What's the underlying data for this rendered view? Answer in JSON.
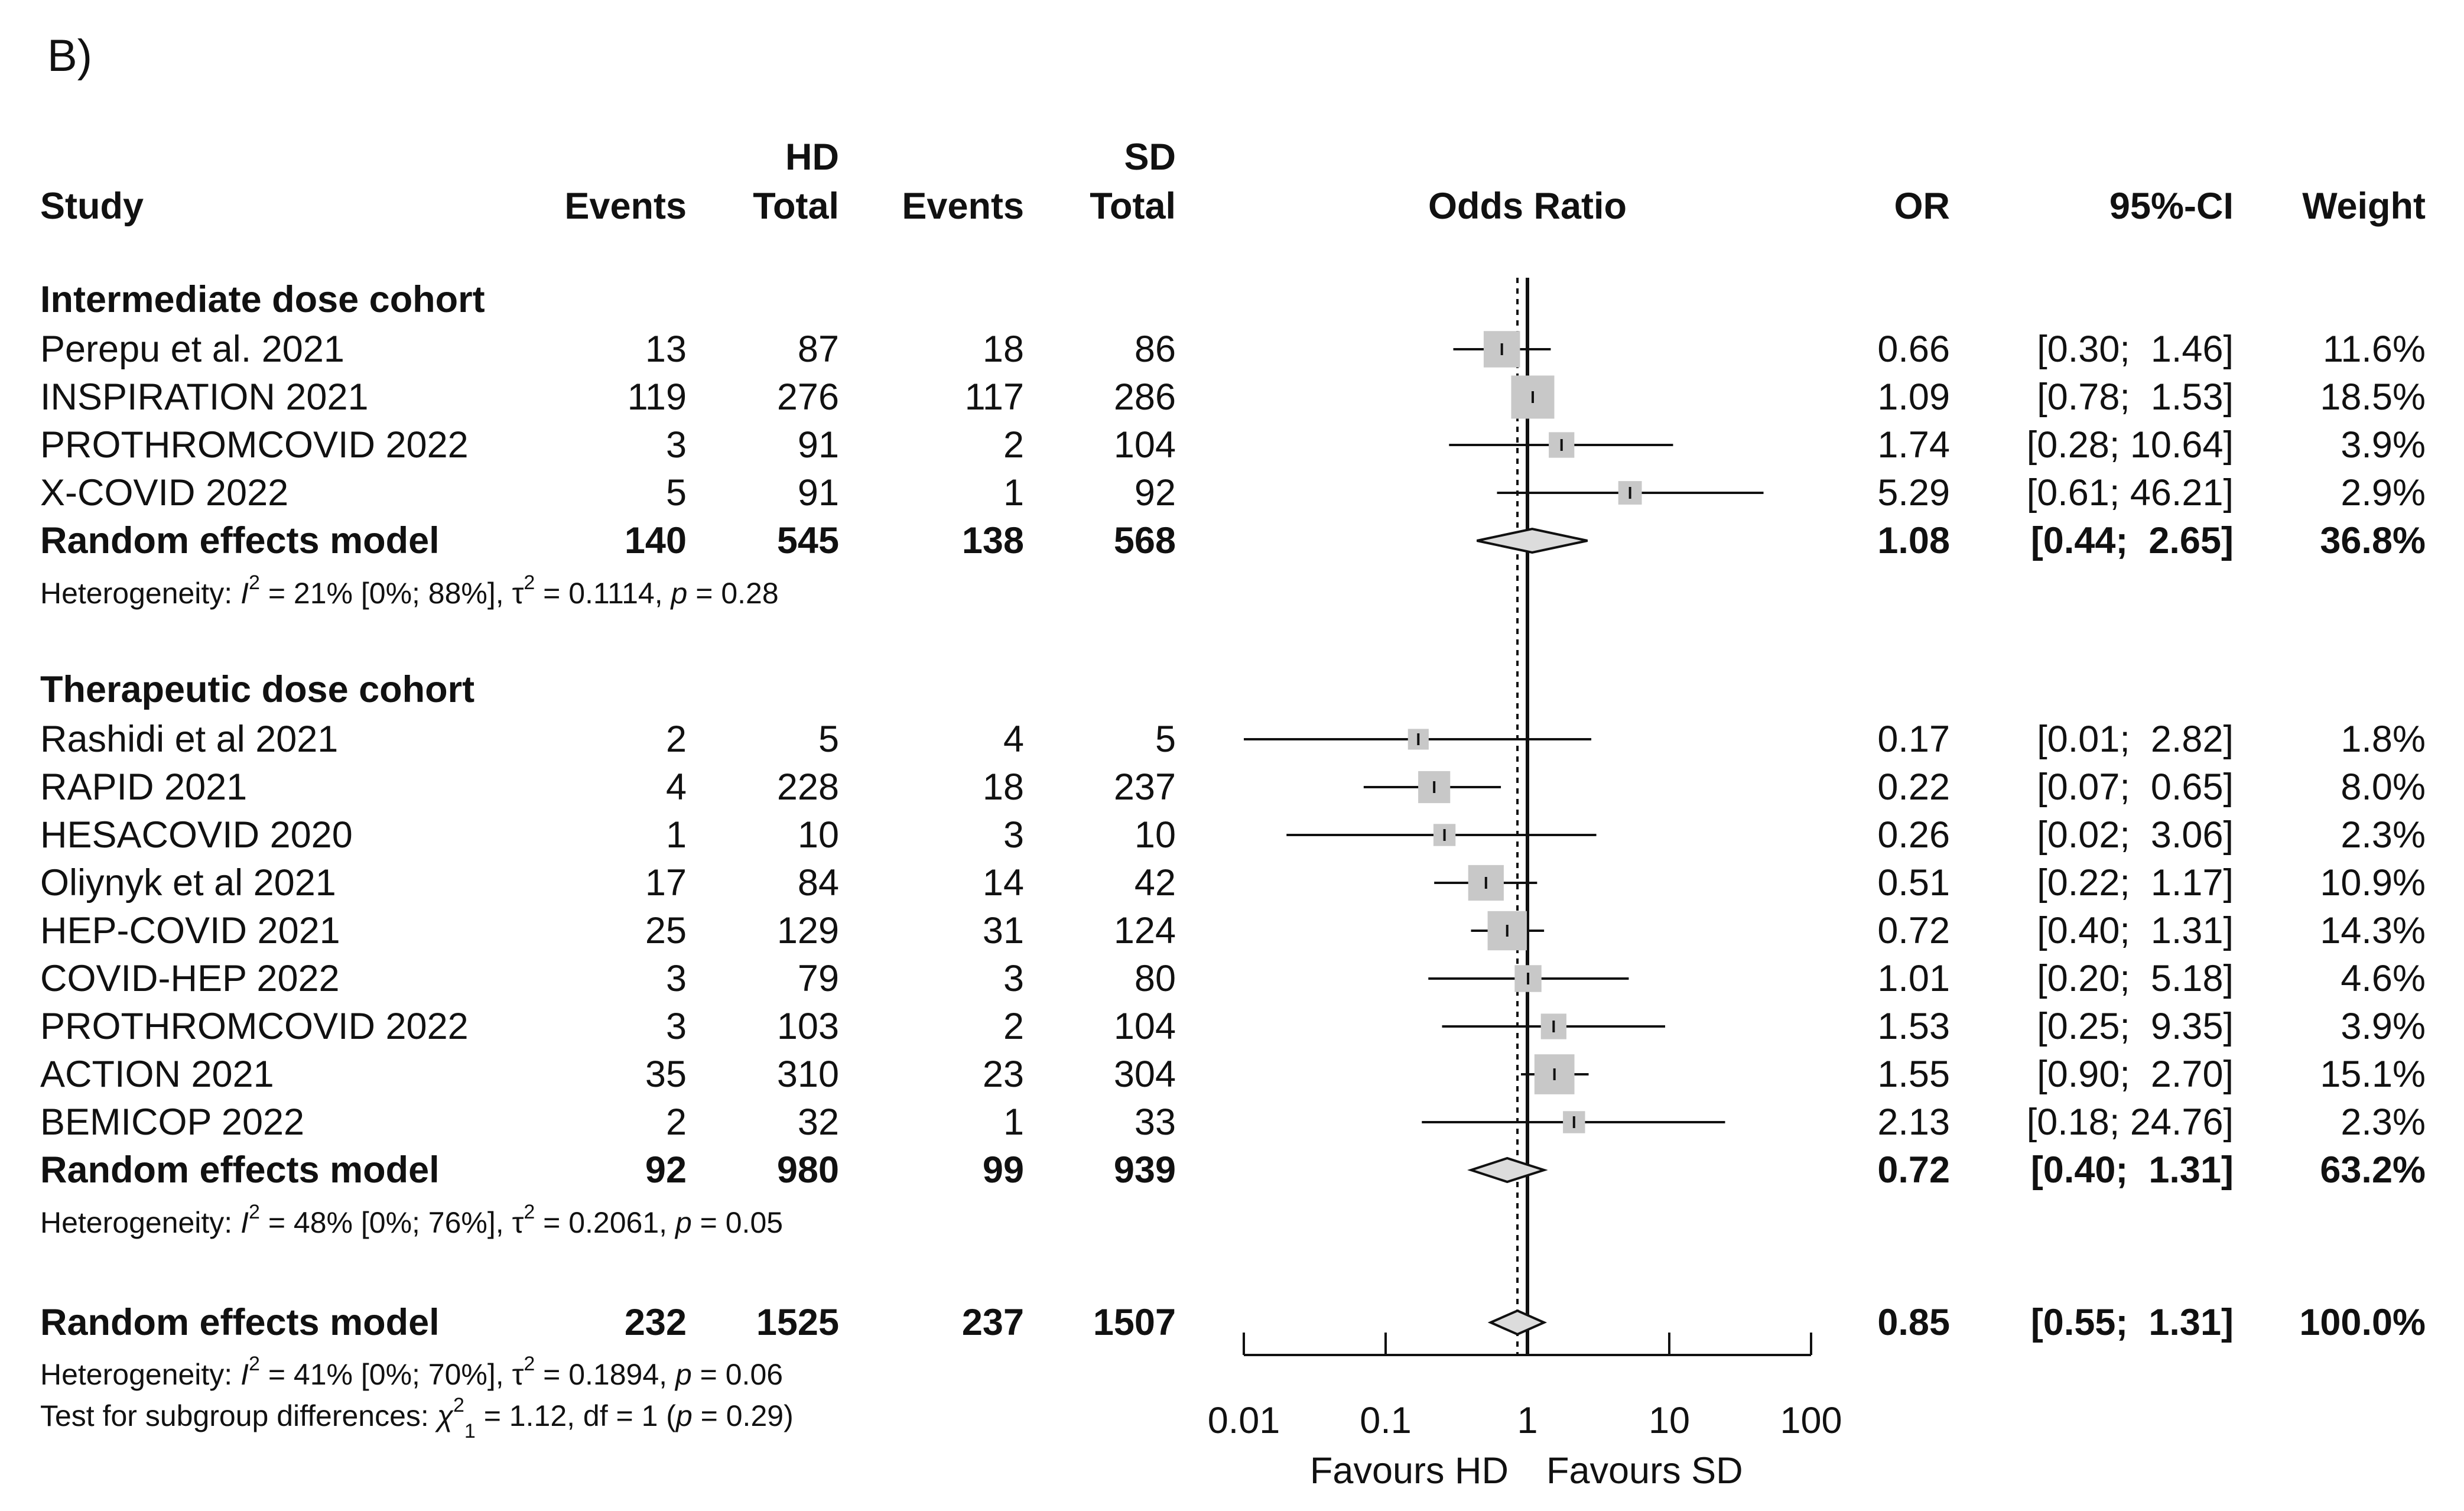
{
  "panel_label": "B)",
  "colors": {
    "text": "#111111",
    "box": "#c8c8c8",
    "line": "#111111",
    "diamond": "#dcdcdc",
    "background": "#ffffff"
  },
  "chart_data": {
    "type": "forest",
    "title": "Odds Ratio",
    "scale": "log10",
    "xlim": [
      0.01,
      100
    ],
    "xticks": [
      0.01,
      0.1,
      1,
      10,
      100
    ],
    "xtick_labels": [
      "0.01",
      "0.1",
      "1",
      "10",
      "100"
    ],
    "reference_line": 1,
    "overall_dashed_line": 0.85,
    "favours_left": "Favours HD",
    "favours_right": "Favours SD",
    "column_headers": {
      "study": "Study",
      "hd_group": "HD",
      "sd_group": "SD",
      "events": "Events",
      "total": "Total",
      "odds_ratio": "Odds Ratio",
      "or": "OR",
      "ci": "95%-CI",
      "weight": "Weight"
    },
    "subgroups": [
      {
        "title": "Intermediate dose cohort",
        "studies": [
          {
            "name": "Perepu et al. 2021",
            "hd_events": "13",
            "hd_total": "87",
            "sd_events": "18",
            "sd_total": "86",
            "or_text": "0.66",
            "ci_text": "[0.30;  1.46]",
            "weight_text": "11.6%",
            "or": 0.66,
            "lower": 0.3,
            "upper": 1.46,
            "weight": 11.6
          },
          {
            "name": "INSPIRATION 2021",
            "hd_events": "119",
            "hd_total": "276",
            "sd_events": "117",
            "sd_total": "286",
            "or_text": "1.09",
            "ci_text": "[0.78;  1.53]",
            "weight_text": "18.5%",
            "or": 1.09,
            "lower": 0.78,
            "upper": 1.53,
            "weight": 18.5
          },
          {
            "name": "PROTHROMCOVID 2022",
            "hd_events": "3",
            "hd_total": "91",
            "sd_events": "2",
            "sd_total": "104",
            "or_text": "1.74",
            "ci_text": "[0.28; 10.64]",
            "weight_text": "3.9%",
            "or": 1.74,
            "lower": 0.28,
            "upper": 10.64,
            "weight": 3.9
          },
          {
            "name": "X-COVID 2022",
            "hd_events": "5",
            "hd_total": "91",
            "sd_events": "1",
            "sd_total": "92",
            "or_text": "5.29",
            "ci_text": "[0.61; 46.21]",
            "weight_text": "2.9%",
            "or": 5.29,
            "lower": 0.61,
            "upper": 46.21,
            "weight": 2.9
          }
        ],
        "model": {
          "name": "Random effects model",
          "hd_events": "140",
          "hd_total": "545",
          "sd_events": "138",
          "sd_total": "568",
          "or_text": "1.08",
          "ci_text": "[0.44;  2.65]",
          "weight_text": "36.8%",
          "or": 1.08,
          "lower": 0.44,
          "upper": 2.65
        },
        "heterogeneity": {
          "prefix": "Heterogeneity: ",
          "i2_label": "I",
          "i2_value": " = 21% [0%; 88%], ",
          "tau_label": "τ",
          "tau_value": " = 0.1114, ",
          "p_label": "p",
          "p_value": " = 0.28"
        }
      },
      {
        "title": "Therapeutic dose cohort",
        "studies": [
          {
            "name": "Rashidi et al 2021",
            "hd_events": "2",
            "hd_total": "5",
            "sd_events": "4",
            "sd_total": "5",
            "or_text": "0.17",
            "ci_text": "[0.01;  2.82]",
            "weight_text": "1.8%",
            "or": 0.17,
            "lower": 0.01,
            "upper": 2.82,
            "weight": 1.8
          },
          {
            "name": "RAPID 2021",
            "hd_events": "4",
            "hd_total": "228",
            "sd_events": "18",
            "sd_total": "237",
            "or_text": "0.22",
            "ci_text": "[0.07;  0.65]",
            "weight_text": "8.0%",
            "or": 0.22,
            "lower": 0.07,
            "upper": 0.65,
            "weight": 8.0
          },
          {
            "name": "HESACOVID 2020",
            "hd_events": "1",
            "hd_total": "10",
            "sd_events": "3",
            "sd_total": "10",
            "or_text": "0.26",
            "ci_text": "[0.02;  3.06]",
            "weight_text": "2.3%",
            "or": 0.26,
            "lower": 0.02,
            "upper": 3.06,
            "weight": 2.3
          },
          {
            "name": "Oliynyk et al 2021",
            "hd_events": "17",
            "hd_total": "84",
            "sd_events": "14",
            "sd_total": "42",
            "or_text": "0.51",
            "ci_text": "[0.22;  1.17]",
            "weight_text": "10.9%",
            "or": 0.51,
            "lower": 0.22,
            "upper": 1.17,
            "weight": 10.9
          },
          {
            "name": "HEP-COVID 2021",
            "hd_events": "25",
            "hd_total": "129",
            "sd_events": "31",
            "sd_total": "124",
            "or_text": "0.72",
            "ci_text": "[0.40;  1.31]",
            "weight_text": "14.3%",
            "or": 0.72,
            "lower": 0.4,
            "upper": 1.31,
            "weight": 14.3
          },
          {
            "name": "COVID-HEP 2022",
            "hd_events": "3",
            "hd_total": "79",
            "sd_events": "3",
            "sd_total": "80",
            "or_text": "1.01",
            "ci_text": "[0.20;  5.18]",
            "weight_text": "4.6%",
            "or": 1.01,
            "lower": 0.2,
            "upper": 5.18,
            "weight": 4.6
          },
          {
            "name": "PROTHROMCOVID 2022",
            "hd_events": "3",
            "hd_total": "103",
            "sd_events": "2",
            "sd_total": "104",
            "or_text": "1.53",
            "ci_text": "[0.25;  9.35]",
            "weight_text": "3.9%",
            "or": 1.53,
            "lower": 0.25,
            "upper": 9.35,
            "weight": 3.9
          },
          {
            "name": "ACTION 2021",
            "hd_events": "35",
            "hd_total": "310",
            "sd_events": "23",
            "sd_total": "304",
            "or_text": "1.55",
            "ci_text": "[0.90;  2.70]",
            "weight_text": "15.1%",
            "or": 1.55,
            "lower": 0.9,
            "upper": 2.7,
            "weight": 15.1
          },
          {
            "name": "BEMICOP 2022",
            "hd_events": "2",
            "hd_total": "32",
            "sd_events": "1",
            "sd_total": "33",
            "or_text": "2.13",
            "ci_text": "[0.18; 24.76]",
            "weight_text": "2.3%",
            "or": 2.13,
            "lower": 0.18,
            "upper": 24.76,
            "weight": 2.3
          }
        ],
        "model": {
          "name": "Random effects model",
          "hd_events": "92",
          "hd_total": "980",
          "sd_events": "99",
          "sd_total": "939",
          "or_text": "0.72",
          "ci_text": "[0.40;  1.31]",
          "weight_text": "63.2%",
          "or": 0.72,
          "lower": 0.4,
          "upper": 1.31
        },
        "heterogeneity": {
          "prefix": "Heterogeneity: ",
          "i2_label": "I",
          "i2_value": " = 48% [0%; 76%], ",
          "tau_label": "τ",
          "tau_value": " = 0.2061, ",
          "p_label": "p",
          "p_value": " = 0.05"
        }
      }
    ],
    "overall": {
      "model": {
        "name": "Random effects model",
        "hd_events": "232",
        "hd_total": "1525",
        "sd_events": "237",
        "sd_total": "1507",
        "or_text": "0.85",
        "ci_text": "[0.55;  1.31]",
        "weight_text": "100.0%",
        "or": 0.85,
        "lower": 0.55,
        "upper": 1.31
      },
      "heterogeneity": {
        "prefix": "Heterogeneity: ",
        "i2_label": "I",
        "i2_value": " = 41% [0%; 70%], ",
        "tau_label": "τ",
        "tau_value": " = 0.1894, ",
        "p_label": "p",
        "p_value": " = 0.06"
      },
      "subgroup_test": {
        "prefix": "Test for subgroup differences: ",
        "chi_label": "χ",
        "chi_sub": "1",
        "chi_value": " = 1.12, df = 1 (",
        "p_label": "p",
        "p_value": " = 0.29)"
      }
    }
  }
}
